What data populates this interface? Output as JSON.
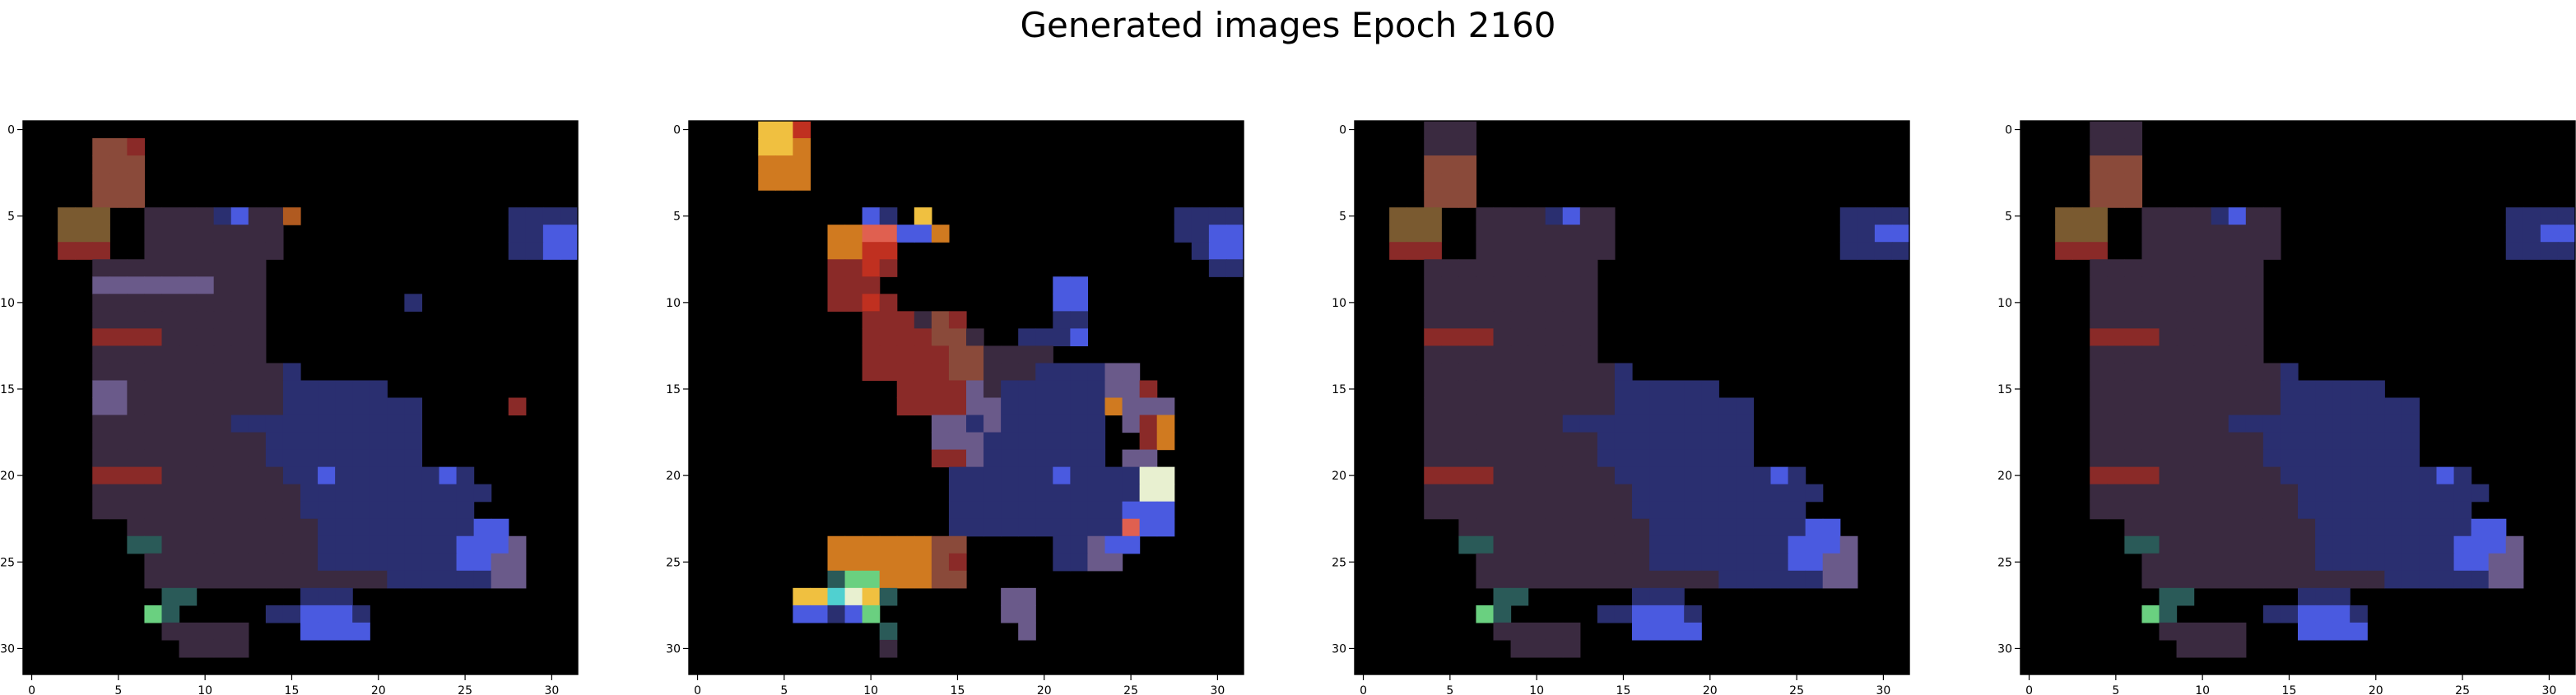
{
  "figure": {
    "title": "Generated images Epoch 2160"
  },
  "chart_data": {
    "type": "heatmap",
    "title": "Generated images Epoch 2160",
    "grid": false,
    "xlim": [
      -0.5,
      31.5
    ],
    "ylim": [
      31.5,
      -0.5
    ],
    "xticks": [
      0,
      5,
      10,
      15,
      20,
      25,
      30
    ],
    "yticks": [
      0,
      5,
      10,
      15,
      20,
      25,
      30
    ],
    "xtick_labels": [
      "0",
      "5",
      "10",
      "15",
      "20",
      "25",
      "30"
    ],
    "ytick_labels": [
      "0",
      "5",
      "10",
      "15",
      "20",
      "25",
      "30"
    ],
    "panels": [
      {
        "grid": [
          "................................",
          "....MMx.........................",
          "....MMM.........................",
          "....MMM.........................",
          "....MMM.........................",
          "..mmm..nnnnbBnno............bbbb",
          "..mmm..nnnnnnnn.............bbBB",
          "..xxx..nnnnnnnn.............bbBB",
          "....nnnnnnnnnn..................",
          "....PPPPPPPnnn..................",
          "....nnnnnnnnnn........b.........",
          "....nnnnnnnnnn..................",
          "....xxxxnnnnnn..................",
          "....nnnnnnnnnn..................",
          "....nnnnnnnnnnnb................",
          "....PPnnnnnnnnnbbbbbb...........",
          "....PPnnnnnnnnnbbbbbbbb.....x...",
          "....nnnnnnnnbbbbbbbbbbb.........",
          "....nnnnnnnnnnbbbbbbbbb.........",
          "....nnnnnnnnnnbbbbbbbbb.........",
          "....xxxxnnnnnnnbbBbbbbbbBb......",
          "....nnnnnnnnnnnnbbbbbbbbbbb.....",
          "....nnnnnnnnnnnnbbbbbbbbbb......",
          "......nnnnnnnnnnnbbbbbbbbbBB....",
          "......ggnnnnnnnnnbbbbbbbbBBBP...",
          ".......nnnnnnnnnnbbbbbbbbBBPP...",
          ".......nnnnnnnnnnnnnnbbbbbbPP...",
          "........gg......bbb.............",
          ".......Gg.....bbBBBb............",
          "........nnnnn...BBBB............",
          ".........nnnn...................",
          "................................"
        ]
      },
      {
        "grid": [
          "....YYr.........................",
          "....YYO.........................",
          "....OOO.........................",
          "....OOO.........................",
          "................................",
          "..........Bb.Y..............bbbb",
          "........OOLLBBO.............bbBB",
          "........OOrr.................bBB",
          "........xxrx..................bb",
          "........xxx..........BB.........",
          "........xxrx.........BB.........",
          "..........xxxnMx.....bb.........",
          "..........xxxxMMn..bbbB.........",
          "..........xxxxxMMnnnn...........",
          "..........xxxxxMMnnnbbbbPP......",
          "............xxxxPnbbbbbbPPx.....",
          "............xxxxPPbbbbbbOPPP....",
          "..............PPbPbbbbbb.PxO....",
          "..............PPPbbbbbbb..xO....",
          "..............xxPbbbbbbb.PP.....",
          "...............bbbbbbBbbbbWW....",
          "...............bbbbbbbbbbbWW....",
          "...............bbbbbbbbbbBBB....",
          "...............bbbbbbbbbbLBB....",
          "........OOOOOOMM.....bbPBB......",
          "........OOOOOOMx.....bbPP.......",
          "........gGGOOOMM................",
          "......YYcWYg......PP............",
          "......BBbBG.......PP............",
          "...........g.......P............",
          "...........n....................",
          "................................"
        ]
      },
      {
        "grid": [
          "....nnn.........................",
          "....nnn.........................",
          "....MMM.........................",
          "....MMM.........................",
          "....MMM.........................",
          "..mmm..nnnnbBnn.............bbbb",
          "..mmm..nnnnnnnn.............bbBB",
          "..xxx..nnnnnnnn.............bbbb",
          "....nnnnnnnnnn..................",
          "....nnnnnnnnnn..................",
          "....nnnnnnnnnn..................",
          "....nnnnnnnnnn..................",
          "....xxxxnnnnnn..................",
          "....nnnnnnnnnn..................",
          "....nnnnnnnnnnnb................",
          "....nnnnnnnnnnnbbbbbb...........",
          "....nnnnnnnnnnnbbbbbbbb.........",
          "....nnnnnnnnbbbbbbbbbbb.........",
          "....nnnnnnnnnnbbbbbbbbb.........",
          "....nnnnnnnnnnbbbbbbbbb.........",
          "....xxxxnnnnnnnbbbbbbbbbBb......",
          "....nnnnnnnnnnnnbbbbbbbbbbb.....",
          "....nnnnnnnnnnnnbbbbbbbbbb......",
          "......nnnnnnnnnnnbbbbbbbbbBB....",
          "......ggnnnnnnnnnbbbbbbbbBBBP...",
          ".......nnnnnnnnnnbbbbbbbbBBPP...",
          ".......nnnnnnnnnnnnnnbbbbbbPP...",
          "........gg......bbb.............",
          ".......Gg.....bbBBBb............",
          "........nnnnn...BBBB............",
          ".........nnnn...................",
          "................................"
        ]
      },
      {
        "grid": [
          "....nnn.........................",
          "....nnn.........................",
          "....MMM.........................",
          "....MMM.........................",
          "....MMM.........................",
          "..mmm..nnnnbBnn.............bbbb",
          "..mmm..nnnnnnnn.............bbBB",
          "..xxx..nnnnnnnn.............bbbb",
          "....nnnnnnnnnn..................",
          "....nnnnnnnnnn..................",
          "....nnnnnnnnnn..................",
          "....nnnnnnnnnn..................",
          "....xxxxnnnnnn..................",
          "....nnnnnnnnnn..................",
          "....nnnnnnnnnnnb................",
          "....nnnnnnnnnnnbbbbbb...........",
          "....nnnnnnnnnnnbbbbbbbb.........",
          "....nnnnnnnnbbbbbbbbbbb.........",
          "....nnnnnnnnnnbbbbbbbbb.........",
          "....nnnnnnnnnnbbbbbbbbb.........",
          "....xxxxnnnnnnnbbbbbbbbbBb......",
          "....nnnnnnnnnnnnbbbbbbbbbbb.....",
          "....nnnnnnnnnnnnbbbbbbbbbb......",
          "......nnnnnnnnnnnbbbbbbbbbBB....",
          "......ggnnnnnnnnnbbbbbbbbBBBP...",
          ".......nnnnnnnnnnbbbbbbbbBBPP...",
          ".......nnnnnnnnnnnnnnbbbbbbPP...",
          "........gg......bbb.............",
          ".......Gg.....bbBBBb............",
          "........nnnnn...BBBB............",
          ".........nnnn...................",
          "................................"
        ]
      }
    ]
  },
  "palette": {
    ".": "#000000",
    "n": "#3a2a40",
    "M": "#8a4a3a",
    "m": "#7a5a30",
    "x": "#8a2a28",
    "P": "#6a5a8a",
    "b": "#2a2f70",
    "B": "#4a5ae0",
    "g": "#2a5a58",
    "G": "#6ad080",
    "O": "#d07a20",
    "Y": "#f0c040",
    "r": "#c03020",
    "L": "#e06050",
    "W": "#e8f0d0",
    "c": "#50d0d0",
    "o": "#b05a20"
  }
}
